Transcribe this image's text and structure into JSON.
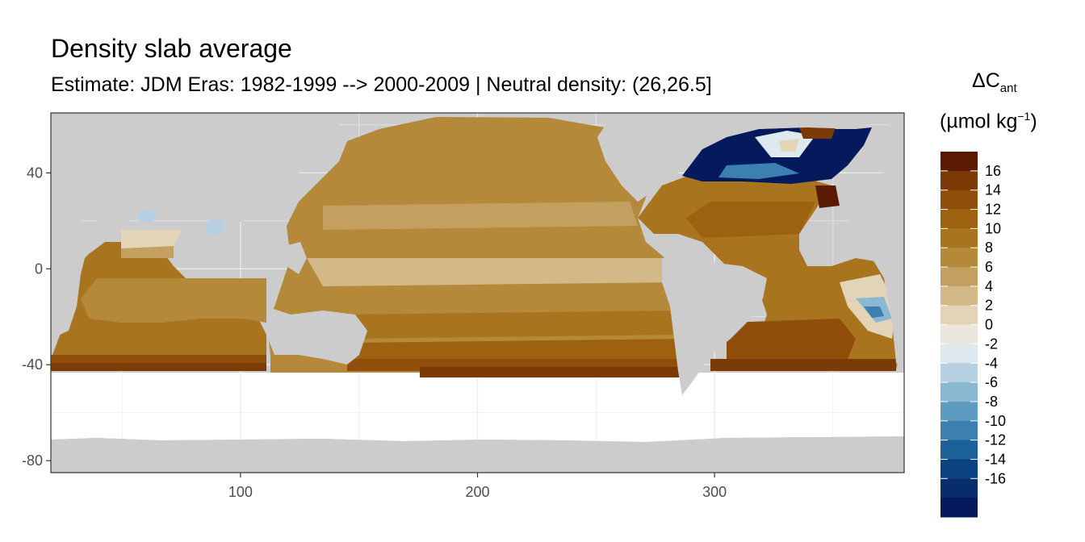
{
  "chart_data": {
    "type": "heatmap",
    "title": "Density slab average",
    "subtitle": "Estimate: JDM Eras: 1982-1999 --> 2000-2009 | Neutral density: (26,26.5]",
    "xlabel": "",
    "ylabel": "",
    "x_ticks": [
      100,
      200,
      300
    ],
    "y_ticks": [
      40,
      0,
      -40,
      -80
    ],
    "xlim": [
      20,
      380
    ],
    "ylim": [
      -85,
      65
    ],
    "grid": true,
    "legend_placement": "right",
    "legend": {
      "title_main": "ΔC",
      "title_sub": "ant",
      "unit_prefix": "(µmol kg",
      "unit_sup": "−1",
      "unit_suffix": ")",
      "breaks": [
        16,
        14,
        12,
        10,
        8,
        6,
        4,
        2,
        0,
        -2,
        -4,
        -6,
        -8,
        -10,
        -12,
        -14,
        -16
      ],
      "colors": [
        "#5a1a02",
        "#7b3a06",
        "#8f4f0a",
        "#9c620f",
        "#a8741e",
        "#b5893a",
        "#c3a060",
        "#d2b987",
        "#e3d4b8",
        "#ebe6de",
        "#dde9ee",
        "#b5d0e1",
        "#8ab7d2",
        "#5d9bc0",
        "#3b80b0",
        "#1b6099",
        "#0b4380",
        "#072d6b",
        "#041a5c"
      ]
    },
    "land_color": "#cccccc",
    "nodata_color": "#ffffff"
  }
}
